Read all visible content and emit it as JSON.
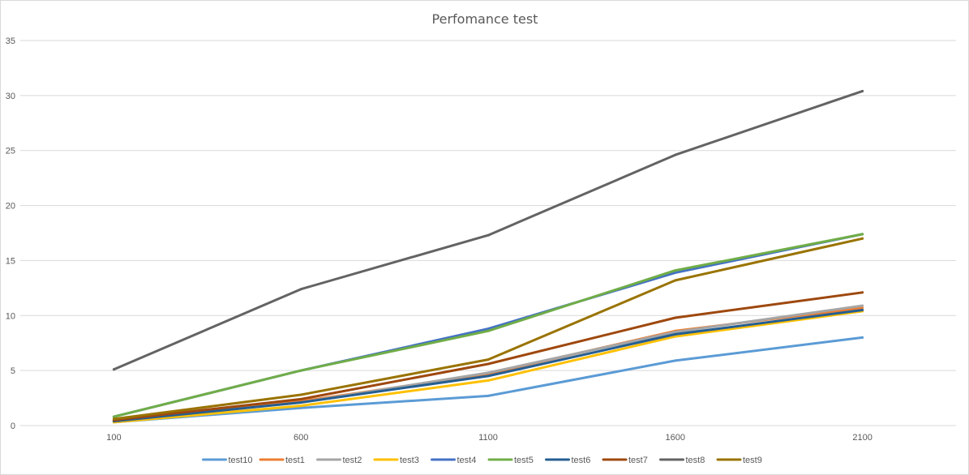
{
  "chart_data": {
    "type": "line",
    "title": "Perfomance test",
    "xlabel": "",
    "ylabel": "",
    "categories": [
      "100",
      "600",
      "1100",
      "1600",
      "2100"
    ],
    "ylim": [
      0,
      35
    ],
    "yticks": [
      "0",
      "5",
      "10",
      "15",
      "20",
      "25",
      "30",
      "35"
    ],
    "grid": true,
    "legend_position": "bottom",
    "series": [
      {
        "name": "test10",
        "color": "#5b9bd5",
        "values": [
          0.3,
          1.6,
          2.7,
          5.9,
          8.0
        ]
      },
      {
        "name": "test1",
        "color": "#ed7d31",
        "values": [
          0.4,
          2.2,
          4.7,
          8.6,
          10.7
        ]
      },
      {
        "name": "test2",
        "color": "#a5a5a5",
        "values": [
          0.4,
          2.1,
          4.8,
          8.5,
          10.9
        ]
      },
      {
        "name": "test3",
        "color": "#ffc000",
        "values": [
          0.3,
          1.8,
          4.1,
          8.1,
          10.4
        ]
      },
      {
        "name": "test4",
        "color": "#4472c4",
        "values": [
          0.8,
          5.0,
          8.8,
          13.9,
          17.4
        ]
      },
      {
        "name": "test5",
        "color": "#70ad47",
        "values": [
          0.8,
          5.0,
          8.6,
          14.1,
          17.4
        ]
      },
      {
        "name": "test6",
        "color": "#255e91",
        "values": [
          0.4,
          2.1,
          4.5,
          8.3,
          10.5
        ]
      },
      {
        "name": "test7",
        "color": "#9e480e",
        "values": [
          0.5,
          2.4,
          5.6,
          9.8,
          12.1
        ]
      },
      {
        "name": "test8",
        "color": "#636363",
        "values": [
          5.1,
          12.4,
          17.3,
          24.6,
          30.4
        ]
      },
      {
        "name": "test9",
        "color": "#997300",
        "values": [
          0.6,
          2.8,
          6.0,
          13.2,
          17.0
        ]
      }
    ]
  }
}
